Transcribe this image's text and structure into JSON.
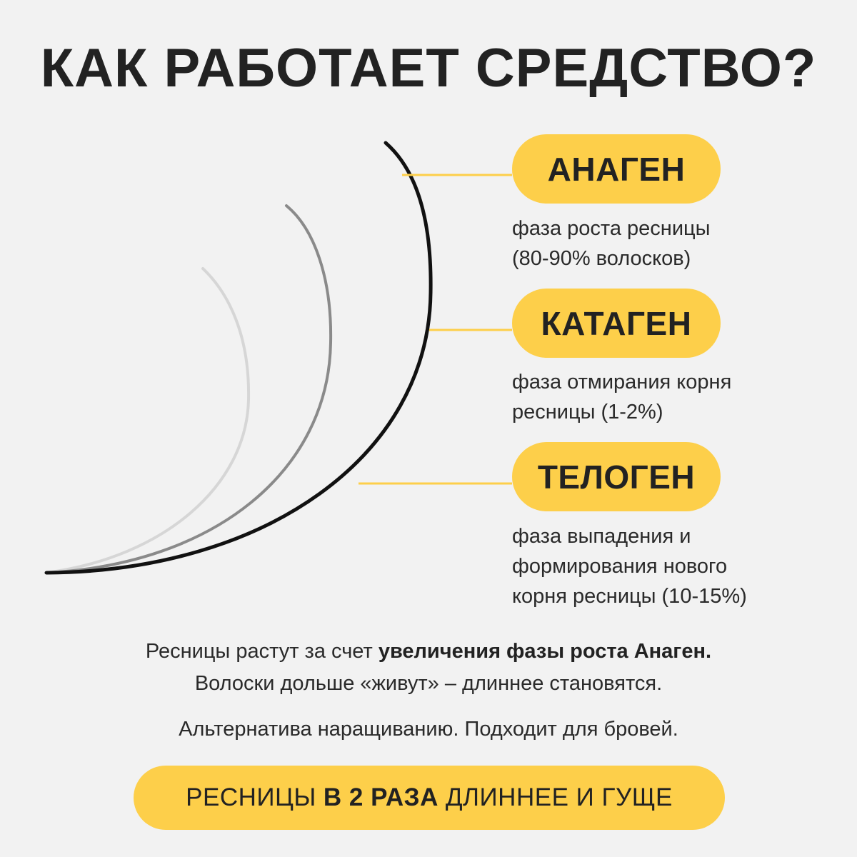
{
  "title": "КАК РАБОТАЕТ СРЕДСТВО?",
  "colors": {
    "background": "#f2f2f2",
    "accent": "#fdcf4a",
    "text": "#222222",
    "lash_long": "#111111",
    "lash_mid": "#8a8a8a",
    "lash_short": "#d6d6d6"
  },
  "phases": [
    {
      "name": "АНАГЕН",
      "description_line1": "фаза роста ресницы",
      "description_line2": "(80-90% волосков)"
    },
    {
      "name": "КАТАГЕН",
      "description_line1": "фаза отмирания корня",
      "description_line2": "ресницы (1-2%)"
    },
    {
      "name": "ТЕЛОГЕН",
      "description_line1": "фаза выпадения и",
      "description_line2": "формирования нового",
      "description_line3": "корня ресницы (10-15%)"
    }
  ],
  "summary": {
    "line1_regular": "Ресницы растут за счет ",
    "line1_bold": "увеличения фазы роста Анаген.",
    "line2": "Волоски дольше «живут» – длиннее становятся.",
    "line3": "Альтернатива наращиванию. Подходит для бровей."
  },
  "cta": {
    "before": "РЕСНИЦЫ",
    "bold": "В 2 РАЗА",
    "after": "ДЛИННЕЕ И ГУЩЕ"
  }
}
